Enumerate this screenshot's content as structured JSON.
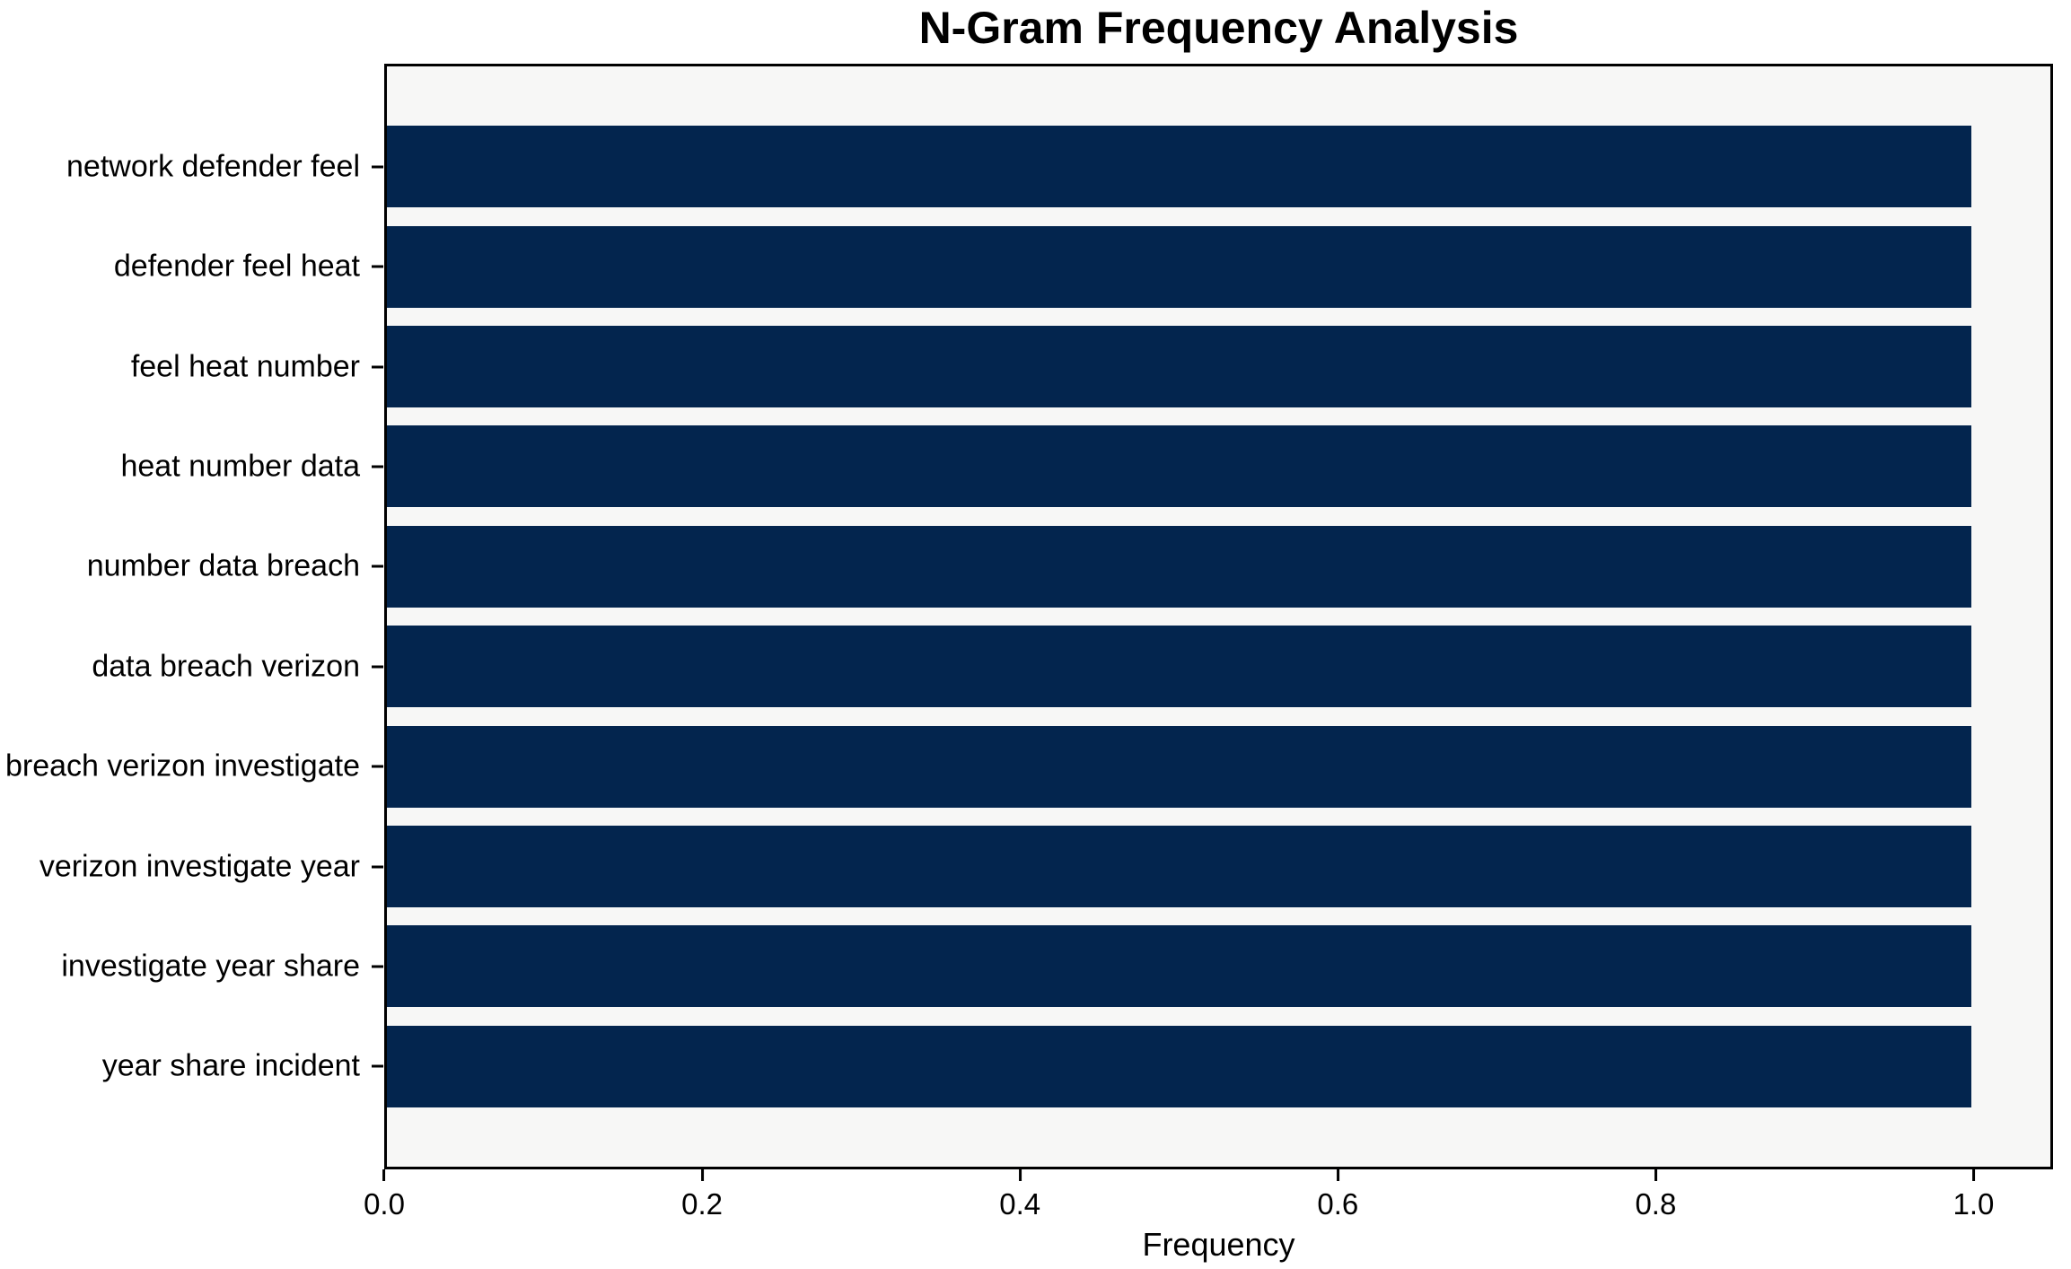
{
  "chart": {
    "title": "N-Gram Frequency Analysis",
    "xlabel": "Frequency"
  },
  "chart_data": {
    "type": "bar",
    "orientation": "horizontal",
    "title": "N-Gram Frequency Analysis",
    "xlabel": "Frequency",
    "ylabel": "",
    "categories": [
      "network defender feel",
      "defender feel heat",
      "feel heat number",
      "heat number data",
      "number data breach",
      "data breach verizon",
      "breach verizon investigate",
      "verizon investigate year",
      "investigate year share",
      "year share incident"
    ],
    "values": [
      1.0,
      1.0,
      1.0,
      1.0,
      1.0,
      1.0,
      1.0,
      1.0,
      1.0,
      1.0
    ],
    "xlim": [
      0,
      1.05
    ],
    "x_ticks": [
      0.0,
      0.2,
      0.4,
      0.6,
      0.8,
      1.0
    ],
    "x_tick_labels": [
      "0.0",
      "0.2",
      "0.4",
      "0.6",
      "0.8",
      "1.0"
    ],
    "grid": false,
    "legend": false,
    "bar_color": "#03254e",
    "plot_background": "#f7f7f6",
    "figure_background": "#ffffff",
    "spine_color": "#000000"
  }
}
